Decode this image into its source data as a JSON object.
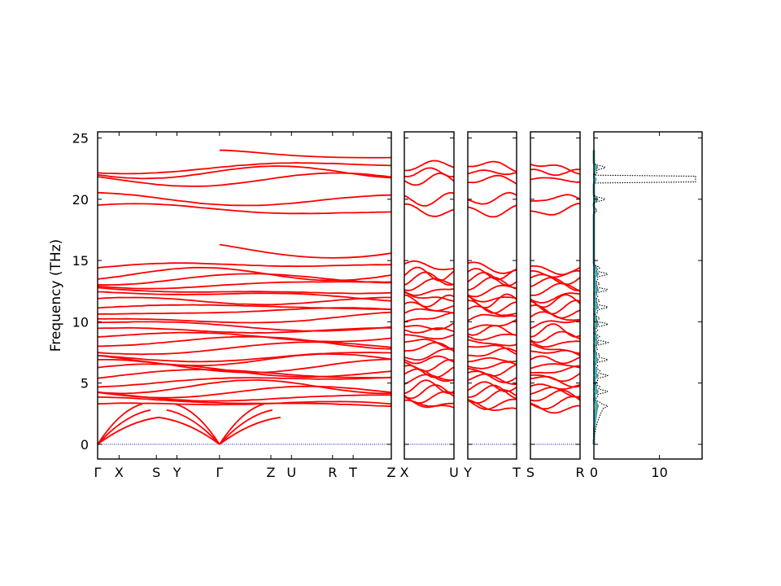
{
  "chart_data": {
    "type": "line",
    "title": "",
    "ylabel": "Frequency (THz)",
    "ylim": [
      -1.2,
      25.5
    ],
    "yticks": [
      0,
      5,
      10,
      15,
      20,
      25
    ],
    "line_color": "#ff0000",
    "zero_line_color": "#0000cc",
    "panels": [
      {
        "id": "band-main",
        "labels": [
          "Γ",
          "X",
          "S",
          "Y",
          "Γ",
          "Z",
          "U",
          "R",
          "T",
          "Z"
        ],
        "tick_fracs": [
          0,
          0.073,
          0.2,
          0.27,
          0.415,
          0.59,
          0.66,
          0.8,
          0.87,
          1
        ]
      },
      {
        "id": "band-xu",
        "labels": [
          "X",
          "U"
        ],
        "tick_fracs": [
          0,
          1
        ]
      },
      {
        "id": "band-yt",
        "labels": [
          "Y",
          "T"
        ],
        "tick_fracs": [
          0,
          1
        ]
      },
      {
        "id": "band-sr",
        "labels": [
          "S",
          "R"
        ],
        "tick_fracs": [
          0,
          1
        ]
      }
    ],
    "dos_panel": {
      "xlabel": "",
      "xlim": [
        0,
        16.5
      ],
      "xticks": [
        0,
        10
      ],
      "series_colors": [
        "#1f77b4",
        "#ff7f0e",
        "#2ca02c",
        "#d62728",
        "#9467bd",
        "#8c564b",
        "#e377c2",
        "#7f7f7f",
        "#bcbd22",
        "#17becf"
      ],
      "total_color": "#000000"
    },
    "approximate_band_levels_thz": [
      3.1,
      3.4,
      3.9,
      4.3,
      4.7,
      5.2,
      5.6,
      6.0,
      6.4,
      6.9,
      7.3,
      7.8,
      8.3,
      8.8,
      9.3,
      9.8,
      10.3,
      10.8,
      11.2,
      11.7,
      12.1,
      12.6,
      13.1,
      13.5,
      13.9,
      14.4,
      19.1,
      20.0,
      21.6,
      22.2,
      22.6
    ]
  }
}
